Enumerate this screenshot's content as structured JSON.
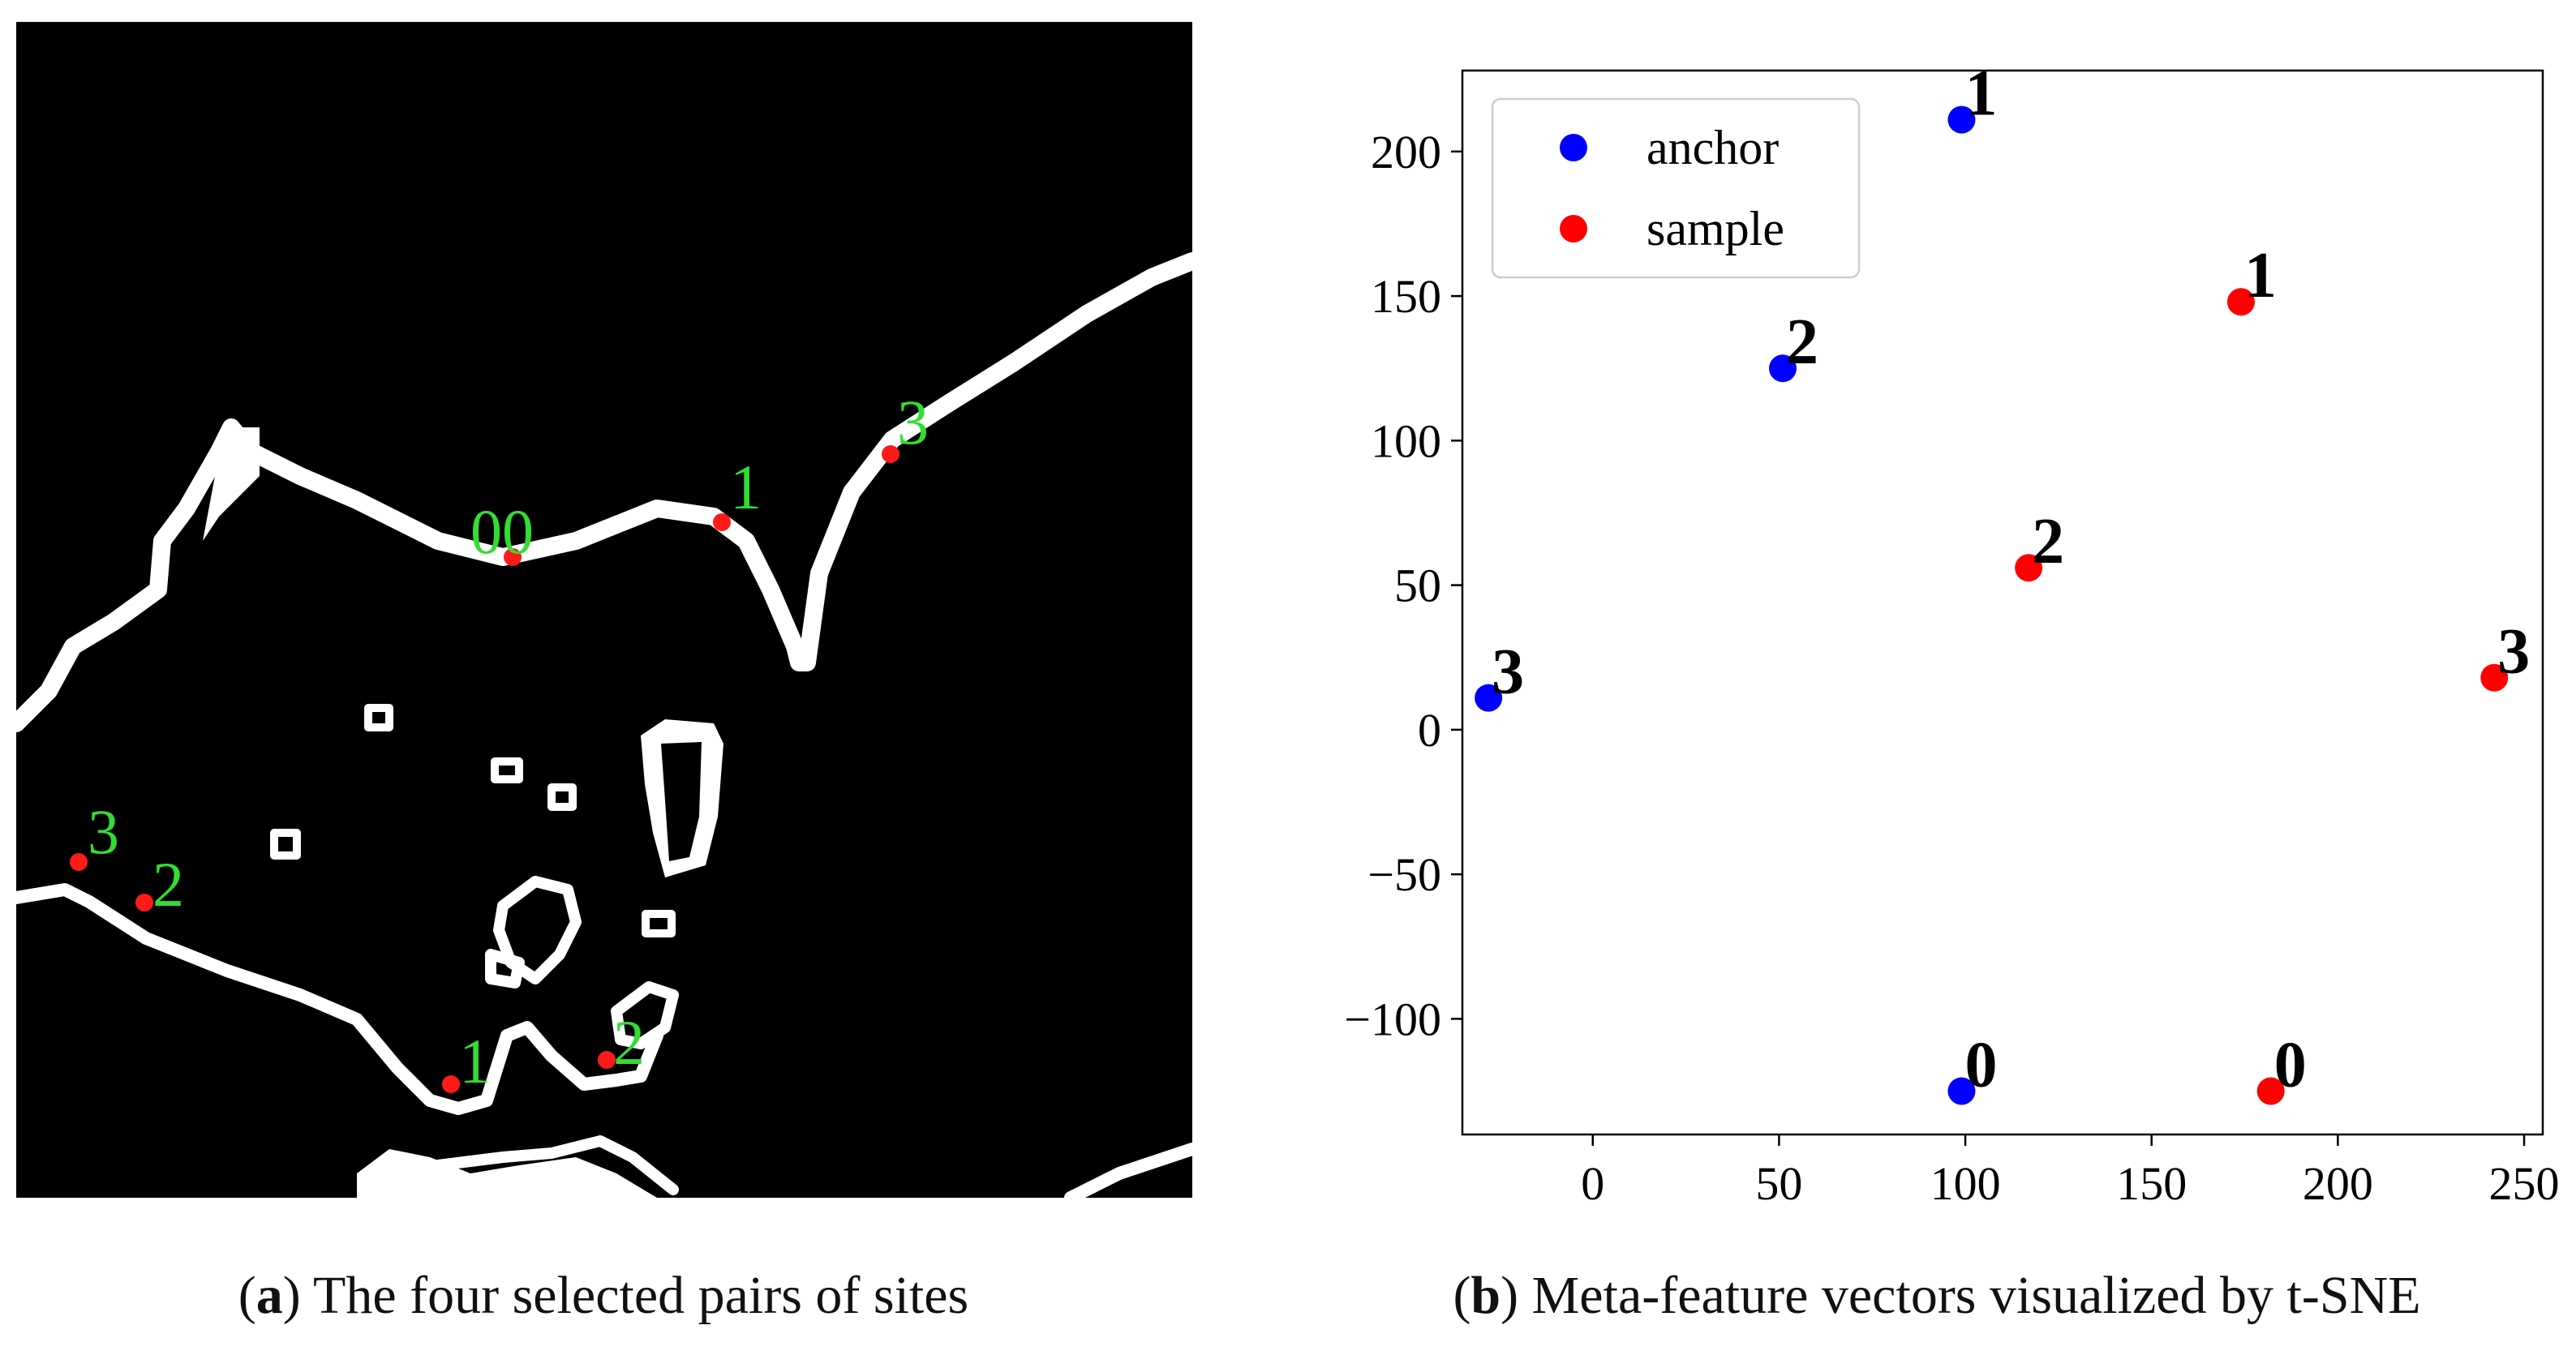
{
  "panel_a": {
    "caption_letter": "a",
    "caption_text": "The four selected pairs of sites",
    "background_color": "#000000",
    "coastline_color": "#ffffff",
    "site_color": "#ff1a1a",
    "label_color": "#33dd33",
    "site_labels": [
      "00",
      "1",
      "3",
      "3",
      "2",
      "1",
      "2"
    ]
  },
  "panel_b": {
    "caption_letter": "b",
    "caption_text": "Meta-feature vectors visualized by t-SNE"
  },
  "chart_data": {
    "type": "scatter",
    "title": "",
    "xlabel": "",
    "ylabel": "",
    "xlim": [
      -35,
      255
    ],
    "ylim": [
      -140,
      228
    ],
    "xticks": [
      0,
      50,
      100,
      150,
      200,
      250
    ],
    "yticks": [
      -100,
      -50,
      0,
      50,
      100,
      150,
      200
    ],
    "xtick_labels": [
      "0",
      "50",
      "100",
      "150",
      "200",
      "250"
    ],
    "ytick_labels": [
      "−100",
      "−50",
      "0",
      "50",
      "100",
      "150",
      "200"
    ],
    "grid": false,
    "legend_position": "top-left",
    "series": [
      {
        "name": "anchor",
        "color": "#0000ff",
        "points": [
          {
            "label": "1",
            "x": 99,
            "y": 211
          },
          {
            "label": "2",
            "x": 51,
            "y": 125
          },
          {
            "label": "3",
            "x": -28,
            "y": 11
          },
          {
            "label": "0",
            "x": 99,
            "y": -125
          }
        ]
      },
      {
        "name": "sample",
        "color": "#ff0000",
        "points": [
          {
            "label": "1",
            "x": 174,
            "y": 148
          },
          {
            "label": "2",
            "x": 117,
            "y": 56
          },
          {
            "label": "3",
            "x": 242,
            "y": 18
          },
          {
            "label": "0",
            "x": 182,
            "y": -125
          }
        ]
      }
    ]
  }
}
